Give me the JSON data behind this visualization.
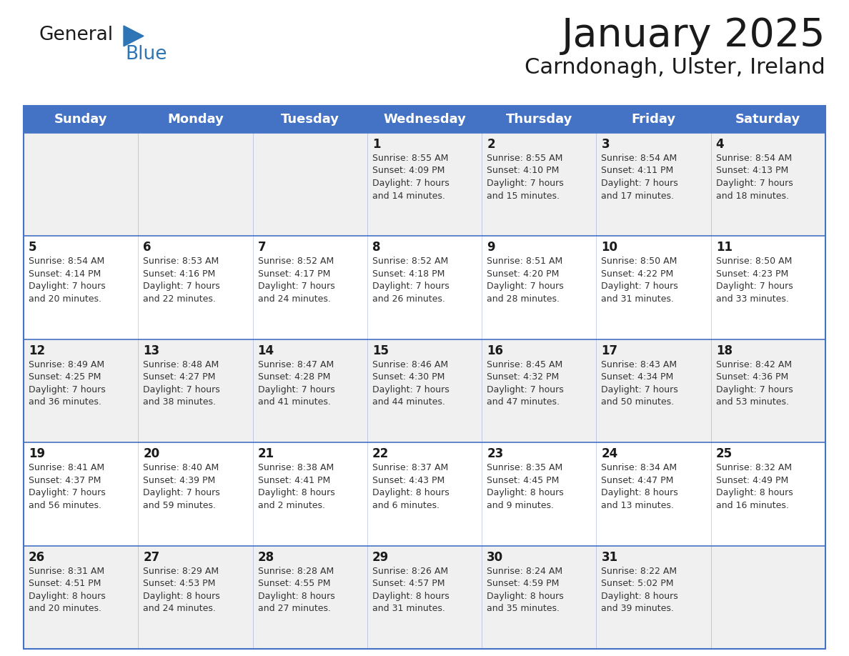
{
  "title": "January 2025",
  "subtitle": "Carndonagh, Ulster, Ireland",
  "header_bg": "#4472C4",
  "header_text_color": "#FFFFFF",
  "cell_bg_odd": "#F0F0F0",
  "cell_bg_even": "#FFFFFF",
  "border_color": "#4472C4",
  "day_headers": [
    "Sunday",
    "Monday",
    "Tuesday",
    "Wednesday",
    "Thursday",
    "Friday",
    "Saturday"
  ],
  "title_color": "#1a1a1a",
  "subtitle_color": "#1a1a1a",
  "day_num_color": "#1a1a1a",
  "info_color": "#333333",
  "logo_general_color": "#1a1a1a",
  "logo_blue_color": "#2E75B6",
  "logo_triangle_color": "#2E75B6",
  "weeks": [
    [
      {
        "day": "",
        "sunrise": "",
        "sunset": "",
        "daylight": ""
      },
      {
        "day": "",
        "sunrise": "",
        "sunset": "",
        "daylight": ""
      },
      {
        "day": "",
        "sunrise": "",
        "sunset": "",
        "daylight": ""
      },
      {
        "day": "1",
        "sunrise": "8:55 AM",
        "sunset": "4:09 PM",
        "daylight": "7 hours\nand 14 minutes."
      },
      {
        "day": "2",
        "sunrise": "8:55 AM",
        "sunset": "4:10 PM",
        "daylight": "7 hours\nand 15 minutes."
      },
      {
        "day": "3",
        "sunrise": "8:54 AM",
        "sunset": "4:11 PM",
        "daylight": "7 hours\nand 17 minutes."
      },
      {
        "day": "4",
        "sunrise": "8:54 AM",
        "sunset": "4:13 PM",
        "daylight": "7 hours\nand 18 minutes."
      }
    ],
    [
      {
        "day": "5",
        "sunrise": "8:54 AM",
        "sunset": "4:14 PM",
        "daylight": "7 hours\nand 20 minutes."
      },
      {
        "day": "6",
        "sunrise": "8:53 AM",
        "sunset": "4:16 PM",
        "daylight": "7 hours\nand 22 minutes."
      },
      {
        "day": "7",
        "sunrise": "8:52 AM",
        "sunset": "4:17 PM",
        "daylight": "7 hours\nand 24 minutes."
      },
      {
        "day": "8",
        "sunrise": "8:52 AM",
        "sunset": "4:18 PM",
        "daylight": "7 hours\nand 26 minutes."
      },
      {
        "day": "9",
        "sunrise": "8:51 AM",
        "sunset": "4:20 PM",
        "daylight": "7 hours\nand 28 minutes."
      },
      {
        "day": "10",
        "sunrise": "8:50 AM",
        "sunset": "4:22 PM",
        "daylight": "7 hours\nand 31 minutes."
      },
      {
        "day": "11",
        "sunrise": "8:50 AM",
        "sunset": "4:23 PM",
        "daylight": "7 hours\nand 33 minutes."
      }
    ],
    [
      {
        "day": "12",
        "sunrise": "8:49 AM",
        "sunset": "4:25 PM",
        "daylight": "7 hours\nand 36 minutes."
      },
      {
        "day": "13",
        "sunrise": "8:48 AM",
        "sunset": "4:27 PM",
        "daylight": "7 hours\nand 38 minutes."
      },
      {
        "day": "14",
        "sunrise": "8:47 AM",
        "sunset": "4:28 PM",
        "daylight": "7 hours\nand 41 minutes."
      },
      {
        "day": "15",
        "sunrise": "8:46 AM",
        "sunset": "4:30 PM",
        "daylight": "7 hours\nand 44 minutes."
      },
      {
        "day": "16",
        "sunrise": "8:45 AM",
        "sunset": "4:32 PM",
        "daylight": "7 hours\nand 47 minutes."
      },
      {
        "day": "17",
        "sunrise": "8:43 AM",
        "sunset": "4:34 PM",
        "daylight": "7 hours\nand 50 minutes."
      },
      {
        "day": "18",
        "sunrise": "8:42 AM",
        "sunset": "4:36 PM",
        "daylight": "7 hours\nand 53 minutes."
      }
    ],
    [
      {
        "day": "19",
        "sunrise": "8:41 AM",
        "sunset": "4:37 PM",
        "daylight": "7 hours\nand 56 minutes."
      },
      {
        "day": "20",
        "sunrise": "8:40 AM",
        "sunset": "4:39 PM",
        "daylight": "7 hours\nand 59 minutes."
      },
      {
        "day": "21",
        "sunrise": "8:38 AM",
        "sunset": "4:41 PM",
        "daylight": "8 hours\nand 2 minutes."
      },
      {
        "day": "22",
        "sunrise": "8:37 AM",
        "sunset": "4:43 PM",
        "daylight": "8 hours\nand 6 minutes."
      },
      {
        "day": "23",
        "sunrise": "8:35 AM",
        "sunset": "4:45 PM",
        "daylight": "8 hours\nand 9 minutes."
      },
      {
        "day": "24",
        "sunrise": "8:34 AM",
        "sunset": "4:47 PM",
        "daylight": "8 hours\nand 13 minutes."
      },
      {
        "day": "25",
        "sunrise": "8:32 AM",
        "sunset": "4:49 PM",
        "daylight": "8 hours\nand 16 minutes."
      }
    ],
    [
      {
        "day": "26",
        "sunrise": "8:31 AM",
        "sunset": "4:51 PM",
        "daylight": "8 hours\nand 20 minutes."
      },
      {
        "day": "27",
        "sunrise": "8:29 AM",
        "sunset": "4:53 PM",
        "daylight": "8 hours\nand 24 minutes."
      },
      {
        "day": "28",
        "sunrise": "8:28 AM",
        "sunset": "4:55 PM",
        "daylight": "8 hours\nand 27 minutes."
      },
      {
        "day": "29",
        "sunrise": "8:26 AM",
        "sunset": "4:57 PM",
        "daylight": "8 hours\nand 31 minutes."
      },
      {
        "day": "30",
        "sunrise": "8:24 AM",
        "sunset": "4:59 PM",
        "daylight": "8 hours\nand 35 minutes."
      },
      {
        "day": "31",
        "sunrise": "8:22 AM",
        "sunset": "5:02 PM",
        "daylight": "8 hours\nand 39 minutes."
      },
      {
        "day": "",
        "sunrise": "",
        "sunset": "",
        "daylight": ""
      }
    ]
  ]
}
